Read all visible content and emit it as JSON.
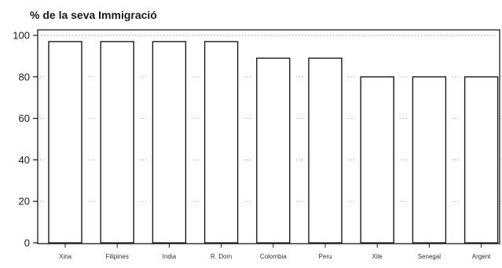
{
  "chart_data": {
    "type": "bar",
    "title": "% de la seva Immigració",
    "xlabel": "",
    "ylabel": "",
    "categories": [
      "Xina",
      "Filipines",
      "India",
      "R. Dom",
      "Colombia",
      "Peru",
      "Xile",
      "Senegal",
      "Argent"
    ],
    "values": [
      97,
      97,
      97,
      97,
      89,
      89,
      80,
      80,
      80
    ],
    "ylim": [
      0,
      100
    ],
    "yticks": [
      "0",
      "20",
      "40",
      "60",
      "80",
      "100"
    ],
    "reference_line": 100,
    "grid": "dotted",
    "bar_fill": "#ffffff",
    "bar_stroke": "#1a1a1a",
    "grid_color": "#9a9a9a"
  }
}
